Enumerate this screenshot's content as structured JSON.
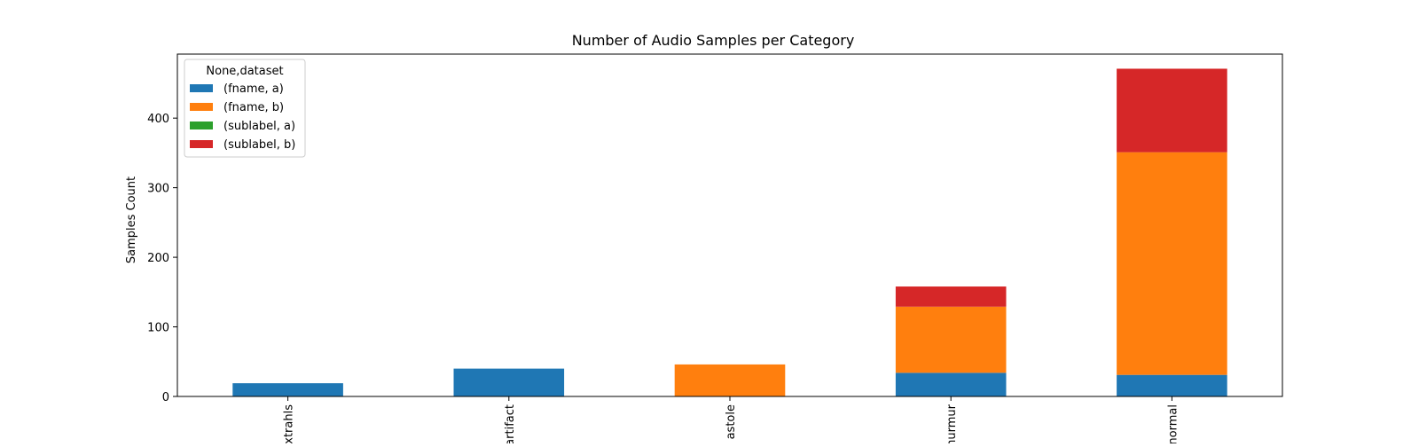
{
  "chart_data": {
    "type": "bar",
    "stacked": true,
    "title": "Number of Audio Samples per Category",
    "xlabel": "",
    "ylabel": "Samples Count",
    "categories": [
      "xtrahls",
      "artifact",
      "extrastole",
      "murmur",
      "normal"
    ],
    "tick_labels": [
      "xtrahls",
      "artifact",
      "astole",
      "murmur",
      "normal"
    ],
    "ylim": [
      0,
      492
    ],
    "yticks": [
      0,
      100,
      200,
      300,
      400
    ],
    "grid": false,
    "legend": {
      "title": "None,dataset",
      "placement": "top-left"
    },
    "series": [
      {
        "name": "(fname, a)",
        "color": "#1f77b4",
        "values": [
          19,
          40,
          0,
          34,
          31
        ]
      },
      {
        "name": "(fname, b)",
        "color": "#ff7f0e",
        "values": [
          0,
          0,
          46,
          95,
          320
        ]
      },
      {
        "name": "(sublabel, a)",
        "color": "#2ca02c",
        "values": [
          0,
          0,
          0,
          0,
          0
        ]
      },
      {
        "name": "(sublabel, b)",
        "color": "#d62728",
        "values": [
          0,
          0,
          0,
          29,
          120
        ]
      }
    ]
  }
}
